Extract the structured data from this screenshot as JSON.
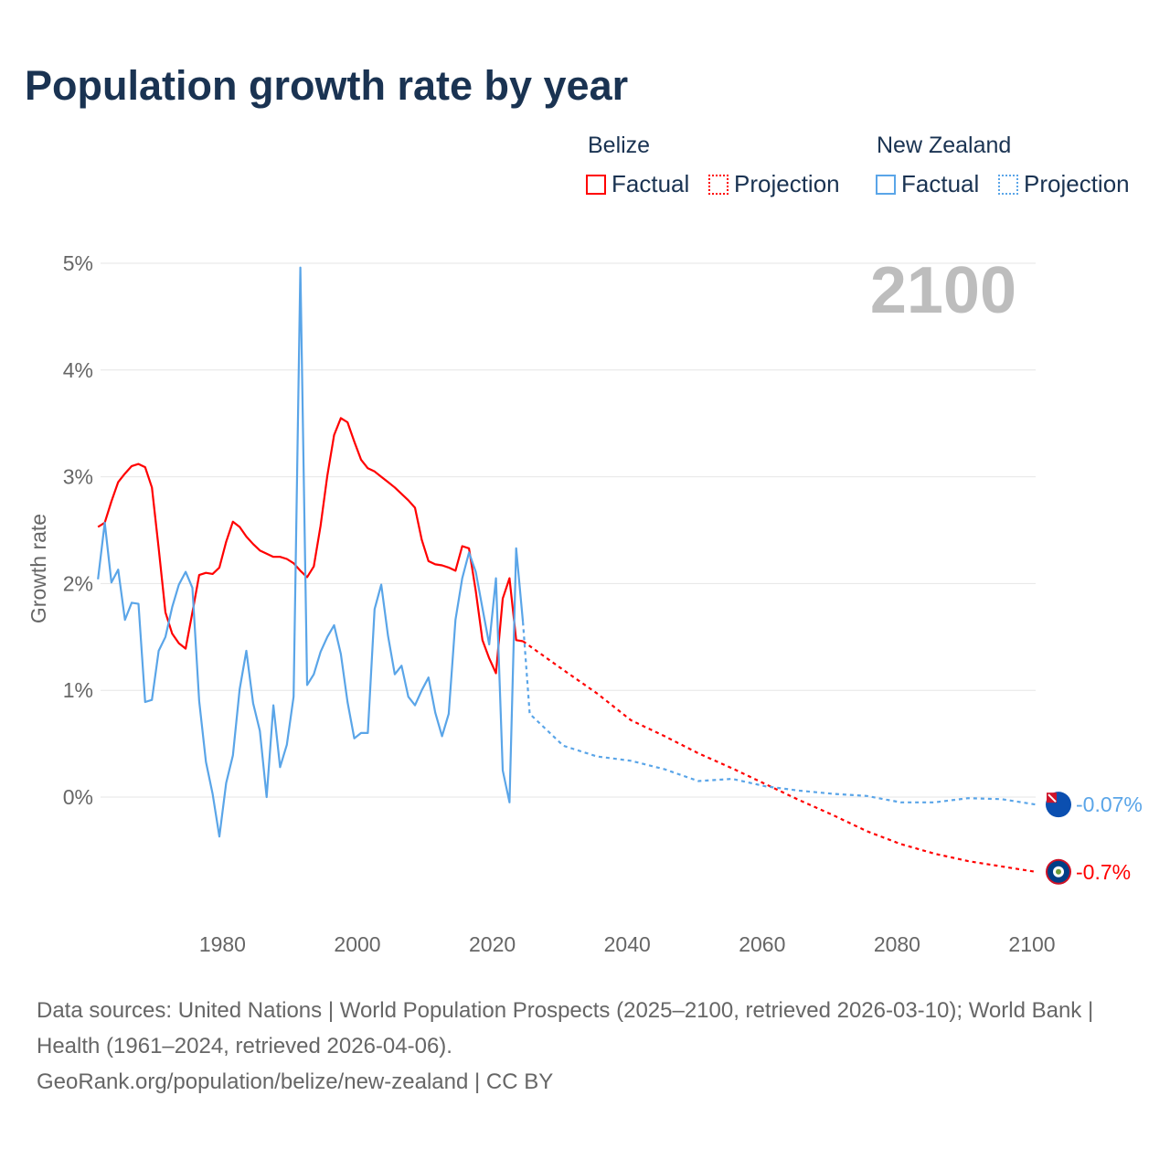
{
  "title": "Population growth rate by year",
  "legend": {
    "groups": [
      {
        "name": "Belize",
        "color": "#ff0000",
        "factual": "Factual",
        "projection": "Projection"
      },
      {
        "name": "New Zealand",
        "color": "#5aa5e8",
        "factual": "Factual",
        "projection": "Projection"
      }
    ]
  },
  "year_watermark": "2100",
  "footer": {
    "sources": "Data sources: United Nations | World Population Prospects (2025–2100, retrieved 2026-03-10); World Bank | Health (1961–2024, retrieved 2026-04-06).",
    "attribution": "GeoRank.org/population/belize/new-zealand | CC BY"
  },
  "chart_data": {
    "type": "line",
    "title": "Population growth rate by year",
    "xlabel": "",
    "ylabel": "Growth rate",
    "xlim": [
      1961,
      2100
    ],
    "ylim": [
      -1.1,
      5.0
    ],
    "x_ticks": [
      1980,
      2000,
      2020,
      2040,
      2060,
      2080,
      2100
    ],
    "y_ticks": [
      0,
      1,
      2,
      3,
      4,
      5
    ],
    "y_tick_labels": [
      "0%",
      "1%",
      "2%",
      "3%",
      "4%",
      "5%"
    ],
    "grid": true,
    "series": [
      {
        "name": "Belize Factual",
        "color": "#ff0000",
        "dashed": false,
        "x": [
          1961,
          1962,
          1963,
          1964,
          1965,
          1966,
          1967,
          1968,
          1969,
          1970,
          1971,
          1972,
          1973,
          1974,
          1975,
          1976,
          1977,
          1978,
          1979,
          1980,
          1981,
          1982,
          1983,
          1984,
          1985,
          1986,
          1987,
          1988,
          1989,
          1990,
          1991,
          1992,
          1993,
          1994,
          1995,
          1996,
          1997,
          1998,
          1999,
          2000,
          2001,
          2002,
          2003,
          2004,
          2005,
          2006,
          2007,
          2008,
          2009,
          2010,
          2011,
          2012,
          2013,
          2014,
          2015,
          2016,
          2017,
          2018,
          2019,
          2020,
          2021,
          2022,
          2023,
          2024
        ],
        "values": [
          2.53,
          2.57,
          2.77,
          2.95,
          3.03,
          3.1,
          3.12,
          3.09,
          2.9,
          2.33,
          1.73,
          1.53,
          1.44,
          1.39,
          1.73,
          2.08,
          2.1,
          2.09,
          2.15,
          2.39,
          2.58,
          2.53,
          2.44,
          2.37,
          2.31,
          2.28,
          2.25,
          2.25,
          2.23,
          2.19,
          2.12,
          2.06,
          2.16,
          2.54,
          3.01,
          3.39,
          3.55,
          3.51,
          3.33,
          3.16,
          3.08,
          3.05,
          3.0,
          2.95,
          2.9,
          2.84,
          2.78,
          2.71,
          2.41,
          2.21,
          2.18,
          2.17,
          2.15,
          2.12,
          2.35,
          2.33,
          1.93,
          1.47,
          1.3,
          1.16,
          1.86,
          2.05,
          1.47,
          1.46
        ]
      },
      {
        "name": "Belize Projection",
        "color": "#ff0000",
        "dashed": true,
        "x": [
          2024,
          2030,
          2035,
          2040,
          2045,
          2050,
          2055,
          2060,
          2065,
          2070,
          2075,
          2080,
          2085,
          2090,
          2095,
          2100
        ],
        "values": [
          1.46,
          1.19,
          0.97,
          0.72,
          0.57,
          0.41,
          0.27,
          0.12,
          -0.03,
          -0.17,
          -0.32,
          -0.44,
          -0.53,
          -0.6,
          -0.65,
          -0.7
        ]
      },
      {
        "name": "New Zealand Factual",
        "color": "#5aa5e8",
        "dashed": false,
        "x": [
          1961,
          1962,
          1963,
          1964,
          1965,
          1966,
          1967,
          1968,
          1969,
          1970,
          1971,
          1972,
          1973,
          1974,
          1975,
          1976,
          1977,
          1978,
          1979,
          1980,
          1981,
          1982,
          1983,
          1984,
          1985,
          1986,
          1987,
          1988,
          1989,
          1990,
          1991,
          1992,
          1993,
          1994,
          1995,
          1996,
          1997,
          1998,
          1999,
          2000,
          2001,
          2002,
          2003,
          2004,
          2005,
          2006,
          2007,
          2008,
          2009,
          2010,
          2011,
          2012,
          2013,
          2014,
          2015,
          2016,
          2017,
          2018,
          2019,
          2020,
          2021,
          2022,
          2023,
          2024
        ],
        "values": [
          2.04,
          2.57,
          2.01,
          2.13,
          1.66,
          1.82,
          1.81,
          0.89,
          0.91,
          1.37,
          1.5,
          1.78,
          1.99,
          2.11,
          1.96,
          0.9,
          0.33,
          0.03,
          -0.37,
          0.13,
          0.39,
          1.01,
          1.37,
          0.88,
          0.62,
          0.0,
          0.86,
          0.28,
          0.49,
          0.94,
          4.96,
          1.05,
          1.15,
          1.36,
          1.5,
          1.61,
          1.34,
          0.89,
          0.55,
          0.6,
          0.6,
          1.76,
          1.99,
          1.51,
          1.15,
          1.23,
          0.94,
          0.86,
          1.0,
          1.12,
          0.79,
          0.57,
          0.78,
          1.66,
          2.05,
          2.29,
          2.11,
          1.77,
          1.43,
          2.05,
          0.25,
          -0.05,
          2.33,
          1.64
        ]
      },
      {
        "name": "New Zealand Projection",
        "color": "#5aa5e8",
        "dashed": true,
        "x": [
          2024,
          2025,
          2030,
          2035,
          2040,
          2045,
          2050,
          2055,
          2060,
          2065,
          2070,
          2075,
          2080,
          2085,
          2090,
          2095,
          2100
        ],
        "values": [
          1.64,
          0.78,
          0.48,
          0.38,
          0.34,
          0.26,
          0.15,
          0.17,
          0.1,
          0.06,
          0.03,
          0.01,
          -0.05,
          -0.05,
          -0.01,
          -0.02,
          -0.07
        ]
      }
    ],
    "end_labels": [
      {
        "country": "New Zealand",
        "text": "-0.07%",
        "value": -0.07,
        "color": "#5aa5e8"
      },
      {
        "country": "Belize",
        "text": "-0.7%",
        "value": -0.7,
        "color": "#ff0000"
      }
    ]
  }
}
